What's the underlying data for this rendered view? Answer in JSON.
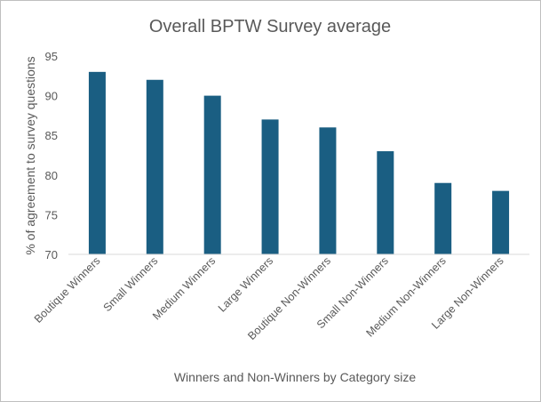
{
  "chart_data": {
    "type": "bar",
    "title": "Overall BPTW Survey average",
    "xlabel": "Winners and Non-Winners by Category size",
    "ylabel": "% of agreement to survey questions",
    "categories": [
      "Boutique Winners",
      "Small Winners",
      "Medium Winners",
      "Large Winners",
      "Boutique Non-Winners",
      "Small Non-Winners",
      "Medium Non-Winners",
      "Large Non-Winners"
    ],
    "values": [
      93,
      92,
      90,
      87,
      86,
      83,
      79,
      78
    ],
    "ylim": [
      70,
      95
    ],
    "yticks": [
      "70",
      "75",
      "80",
      "85",
      "90",
      "95"
    ],
    "grid": false,
    "legend": "none",
    "bar_color": "#1a5e82"
  }
}
